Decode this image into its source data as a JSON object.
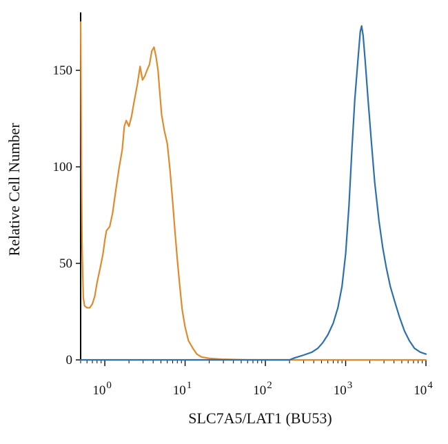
{
  "chart_data": {
    "type": "line",
    "title": "",
    "xlabel": "SLC7A5/LAT1 (BU53)",
    "ylabel": "Relative Cell Number",
    "x_scale": "log",
    "xlim": [
      0.5,
      10000
    ],
    "ylim": [
      0,
      180
    ],
    "x_ticks": [
      {
        "value": 1,
        "base": "10",
        "exp": "0"
      },
      {
        "value": 10,
        "base": "10",
        "exp": "1"
      },
      {
        "value": 100,
        "base": "10",
        "exp": "2"
      },
      {
        "value": 1000,
        "base": "10",
        "exp": "3"
      },
      {
        "value": 10000,
        "base": "10",
        "exp": "4"
      }
    ],
    "y_ticks": [
      {
        "value": 0,
        "label": "0"
      },
      {
        "value": 50,
        "label": "50"
      },
      {
        "value": 100,
        "label": "100"
      },
      {
        "value": 150,
        "label": "150"
      }
    ],
    "legend": "none",
    "grid": false,
    "series": [
      {
        "color": "#e08a2c",
        "points": [
          [
            0.5,
            175
          ],
          [
            0.51,
            110
          ],
          [
            0.52,
            60
          ],
          [
            0.54,
            32
          ],
          [
            0.56,
            28
          ],
          [
            0.6,
            27
          ],
          [
            0.65,
            27
          ],
          [
            0.7,
            29
          ],
          [
            0.75,
            33
          ],
          [
            0.8,
            40
          ],
          [
            0.88,
            48
          ],
          [
            0.95,
            55
          ],
          [
            1.0,
            62
          ],
          [
            1.05,
            67
          ],
          [
            1.15,
            69
          ],
          [
            1.25,
            76
          ],
          [
            1.35,
            86
          ],
          [
            1.5,
            99
          ],
          [
            1.65,
            109
          ],
          [
            1.75,
            121
          ],
          [
            1.85,
            124
          ],
          [
            2.0,
            121
          ],
          [
            2.15,
            126
          ],
          [
            2.3,
            133
          ],
          [
            2.55,
            143
          ],
          [
            2.75,
            152
          ],
          [
            2.95,
            145
          ],
          [
            3.15,
            147
          ],
          [
            3.35,
            150
          ],
          [
            3.6,
            153
          ],
          [
            3.85,
            160
          ],
          [
            4.1,
            162
          ],
          [
            4.35,
            157
          ],
          [
            4.6,
            150
          ],
          [
            4.85,
            138
          ],
          [
            5.1,
            127
          ],
          [
            5.5,
            119
          ],
          [
            6.0,
            112
          ],
          [
            6.5,
            98
          ],
          [
            7.0,
            82
          ],
          [
            7.5,
            66
          ],
          [
            8.0,
            52
          ],
          [
            8.6,
            38
          ],
          [
            9.2,
            26
          ],
          [
            10.0,
            17
          ],
          [
            11.0,
            10
          ],
          [
            12.5,
            6
          ],
          [
            14.0,
            3
          ],
          [
            16.0,
            1.5
          ],
          [
            20.0,
            0.8
          ],
          [
            30.0,
            0.3
          ],
          [
            60.0,
            0
          ],
          [
            10000,
            0
          ]
        ]
      },
      {
        "color": "#2c6fad",
        "points": [
          [
            0.5,
            0
          ],
          [
            200,
            0
          ],
          [
            230,
            1
          ],
          [
            300,
            2.5
          ],
          [
            380,
            4
          ],
          [
            450,
            6
          ],
          [
            520,
            9
          ],
          [
            600,
            13
          ],
          [
            700,
            19
          ],
          [
            800,
            27
          ],
          [
            900,
            38
          ],
          [
            1000,
            55
          ],
          [
            1100,
            80
          ],
          [
            1200,
            110
          ],
          [
            1300,
            135
          ],
          [
            1420,
            155
          ],
          [
            1520,
            170
          ],
          [
            1580,
            173
          ],
          [
            1650,
            168
          ],
          [
            1750,
            155
          ],
          [
            1900,
            135
          ],
          [
            2100,
            112
          ],
          [
            2300,
            92
          ],
          [
            2600,
            72
          ],
          [
            2900,
            58
          ],
          [
            3200,
            48
          ],
          [
            3600,
            38
          ],
          [
            4100,
            30
          ],
          [
            4700,
            22
          ],
          [
            5400,
            15
          ],
          [
            6200,
            10
          ],
          [
            7200,
            6
          ],
          [
            8500,
            4
          ],
          [
            10000,
            3
          ]
        ]
      }
    ]
  }
}
